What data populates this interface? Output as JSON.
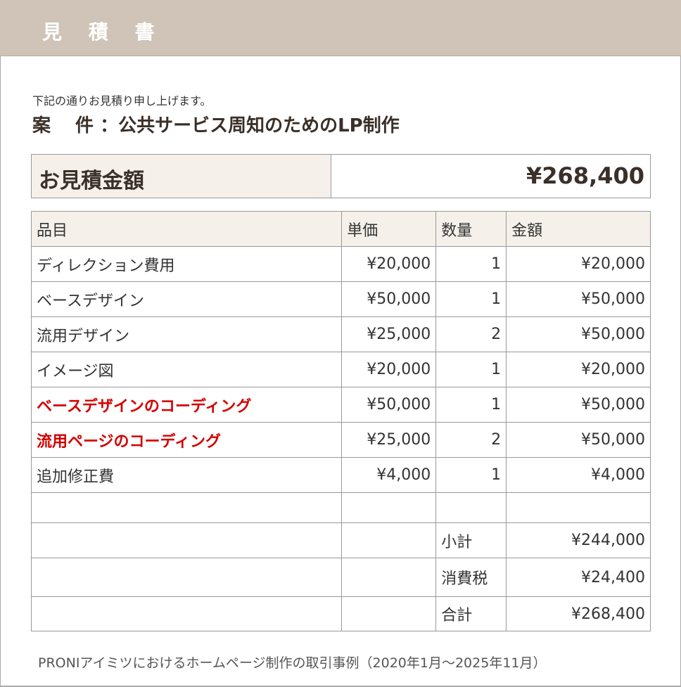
{
  "header": {
    "title": "見 積 書"
  },
  "intro": "下記の通りお見積り申し上げます。",
  "subject": "案　 件 ：公共サービス周知のためのLP制作",
  "total": {
    "label": "お見積金額",
    "value": "¥268,400"
  },
  "table": {
    "columns": [
      "品目",
      "単価",
      "数量",
      "金額"
    ],
    "rows": [
      {
        "item": "ディレクション費用",
        "price": "¥20,000",
        "qty": "1",
        "amount": "¥20,000",
        "highlight": false
      },
      {
        "item": "ベースデザイン",
        "price": "¥50,000",
        "qty": "1",
        "amount": "¥50,000",
        "highlight": false
      },
      {
        "item": "流用デザイン",
        "price": "¥25,000",
        "qty": "2",
        "amount": "¥50,000",
        "highlight": false
      },
      {
        "item": "イメージ図",
        "price": "¥20,000",
        "qty": "1",
        "amount": "¥20,000",
        "highlight": false
      },
      {
        "item": "ベースデザインのコーディング",
        "price": "¥50,000",
        "qty": "1",
        "amount": "¥50,000",
        "highlight": true
      },
      {
        "item": "流用ページのコーディング",
        "price": "¥25,000",
        "qty": "2",
        "amount": "¥50,000",
        "highlight": true
      },
      {
        "item": "追加修正費",
        "price": "¥4,000",
        "qty": "1",
        "amount": "¥4,000",
        "highlight": false
      }
    ],
    "summary": [
      {
        "label": "小計",
        "value": "¥244,000"
      },
      {
        "label": "消費税",
        "value": "¥24,400"
      },
      {
        "label": "合計",
        "value": "¥268,400"
      }
    ]
  },
  "footer": "PRONIアイミツにおけるホームページ制作の取引事例（2020年1月〜2025年11月）",
  "colors": {
    "header_bg": "#cfc4b7",
    "highlight": "#d40000",
    "cell_bg": "#f5f1ea"
  }
}
